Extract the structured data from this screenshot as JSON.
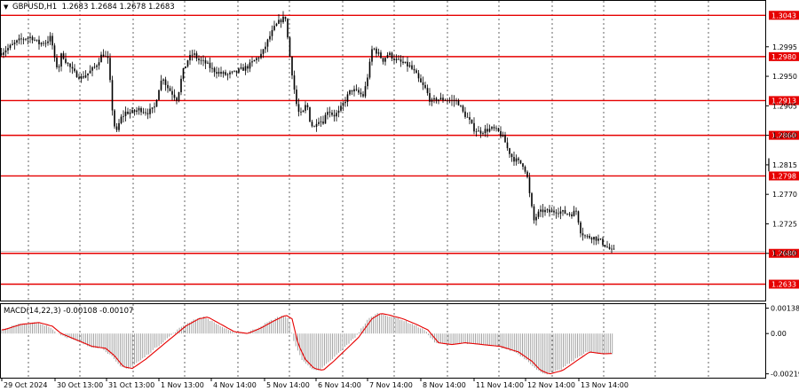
{
  "header": {
    "symbol_info": "GBPUSD,H1  1.2683 1.2684 1.2678 1.2683",
    "macd_info": "MACD(14,22,3) -0.00108 -0.00107"
  },
  "colors": {
    "background": "#ffffff",
    "candle": "#000000",
    "level_line": "#e60000",
    "signal_line": "#e60000",
    "histogram": "#9a9a9a",
    "grid": "#000000"
  },
  "chart_data": {
    "type": "candlestick",
    "symbol": "GBPUSD",
    "timeframe": "H1",
    "ohlc_current": {
      "open": 1.2683,
      "high": 1.2684,
      "low": 1.2678,
      "close": 1.2683
    },
    "ylim": [
      1.2608,
      1.3065
    ],
    "y_ticks": [
      1.2995,
      1.295,
      1.2905,
      1.286,
      1.2815,
      1.277,
      1.2725,
      1.268
    ],
    "x_labels": [
      "29 Oct 2024",
      "30 Oct 13:00",
      "31 Oct 13:00",
      "1 Nov 13:00",
      "4 Nov 14:00",
      "5 Nov 14:00",
      "6 Nov 14:00",
      "7 Nov 14:00",
      "8 Nov 14:00",
      "11 Nov 14:00",
      "12 Nov 14:00",
      "13 Nov 14:00"
    ],
    "levels": [
      1.3043,
      1.298,
      1.2913,
      1.286,
      1.2798,
      1.268,
      1.2633
    ],
    "current_price": 1.2683,
    "price_path": [
      [
        0,
        1.2985
      ],
      [
        6,
        1.299
      ],
      [
        12,
        1.2995
      ],
      [
        20,
        1.3003
      ],
      [
        28,
        1.3008
      ],
      [
        36,
        1.301
      ],
      [
        44,
        1.3
      ],
      [
        52,
        1.3002
      ],
      [
        58,
        1.301
      ],
      [
        62,
        1.2975
      ],
      [
        66,
        1.296
      ],
      [
        70,
        1.2985
      ],
      [
        76,
        1.297
      ],
      [
        84,
        1.2955
      ],
      [
        92,
        1.2948
      ],
      [
        100,
        1.2955
      ],
      [
        108,
        1.2965
      ],
      [
        116,
        1.2985
      ],
      [
        122,
        1.2975
      ],
      [
        126,
        1.292
      ],
      [
        128,
        1.288
      ],
      [
        132,
        1.2865
      ],
      [
        136,
        1.2885
      ],
      [
        142,
        1.2895
      ],
      [
        150,
        1.2895
      ],
      [
        158,
        1.29
      ],
      [
        166,
        1.2895
      ],
      [
        174,
        1.29
      ],
      [
        180,
        1.2935
      ],
      [
        184,
        1.295
      ],
      [
        188,
        1.2935
      ],
      [
        194,
        1.2925
      ],
      [
        200,
        1.2915
      ],
      [
        206,
        1.2955
      ],
      [
        212,
        1.2975
      ],
      [
        218,
        1.2985
      ],
      [
        224,
        1.2975
      ],
      [
        232,
        1.297
      ],
      [
        240,
        1.296
      ],
      [
        248,
        1.2955
      ],
      [
        256,
        1.2952
      ],
      [
        264,
        1.2955
      ],
      [
        272,
        1.296
      ],
      [
        280,
        1.2965
      ],
      [
        288,
        1.2975
      ],
      [
        296,
        1.2985
      ],
      [
        304,
        1.301
      ],
      [
        310,
        1.3025
      ],
      [
        316,
        1.3035
      ],
      [
        322,
        1.304
      ],
      [
        326,
        1.299
      ],
      [
        330,
        1.295
      ],
      [
        334,
        1.291
      ],
      [
        338,
        1.289
      ],
      [
        342,
        1.2895
      ],
      [
        346,
        1.291
      ],
      [
        350,
        1.288
      ],
      [
        354,
        1.287
      ],
      [
        358,
        1.2885
      ],
      [
        364,
        1.288
      ],
      [
        370,
        1.29
      ],
      [
        376,
        1.289
      ],
      [
        382,
        1.2895
      ],
      [
        388,
        1.291
      ],
      [
        396,
        1.293
      ],
      [
        404,
        1.2925
      ],
      [
        410,
        1.292
      ],
      [
        416,
        1.296
      ],
      [
        420,
        1.2995
      ],
      [
        426,
        1.2985
      ],
      [
        432,
        1.2975
      ],
      [
        438,
        1.2985
      ],
      [
        446,
        1.2975
      ],
      [
        454,
        1.297
      ],
      [
        462,
        1.2965
      ],
      [
        468,
        1.2955
      ],
      [
        474,
        1.294
      ],
      [
        480,
        1.293
      ],
      [
        486,
        1.291
      ],
      [
        492,
        1.2915
      ],
      [
        500,
        1.2915
      ],
      [
        508,
        1.2913
      ],
      [
        516,
        1.2912
      ],
      [
        522,
        1.2895
      ],
      [
        528,
        1.2885
      ],
      [
        534,
        1.287
      ],
      [
        540,
        1.2865
      ],
      [
        548,
        1.2868
      ],
      [
        556,
        1.287
      ],
      [
        562,
        1.2865
      ],
      [
        568,
        1.2855
      ],
      [
        572,
        1.284
      ],
      [
        578,
        1.2825
      ],
      [
        584,
        1.282
      ],
      [
        590,
        1.2815
      ],
      [
        594,
        1.28
      ],
      [
        598,
        1.276
      ],
      [
        602,
        1.273
      ],
      [
        606,
        1.274
      ],
      [
        612,
        1.2745
      ],
      [
        620,
        1.2743
      ],
      [
        628,
        1.2745
      ],
      [
        636,
        1.2742
      ],
      [
        644,
        1.274
      ],
      [
        650,
        1.2745
      ],
      [
        654,
        1.2715
      ],
      [
        660,
        1.2705
      ],
      [
        668,
        1.2705
      ],
      [
        676,
        1.27
      ],
      [
        684,
        1.269
      ],
      [
        690,
        1.2683
      ]
    ]
  },
  "macd": {
    "ylim": [
      -0.0024,
      0.0016
    ],
    "y_ticks": [
      0.00138,
      0.0,
      -0.00219
    ],
    "y_tick_labels": [
      "0.00138",
      "0.00",
      "-0.00219"
    ],
    "hist_path": [
      [
        0,
        0.0002
      ],
      [
        20,
        0.0005
      ],
      [
        40,
        0.0006
      ],
      [
        55,
        0.0004
      ],
      [
        65,
        0.0
      ],
      [
        80,
        -0.0003
      ],
      [
        100,
        -0.0007
      ],
      [
        115,
        -0.0008
      ],
      [
        125,
        -0.0012
      ],
      [
        135,
        -0.0018
      ],
      [
        145,
        -0.0019
      ],
      [
        160,
        -0.0014
      ],
      [
        175,
        -0.0008
      ],
      [
        190,
        -0.0002
      ],
      [
        205,
        0.0004
      ],
      [
        220,
        0.0008
      ],
      [
        230,
        0.0009
      ],
      [
        245,
        0.0005
      ],
      [
        260,
        0.0001
      ],
      [
        275,
        0.0
      ],
      [
        290,
        0.0003
      ],
      [
        305,
        0.0007
      ],
      [
        318,
        0.001
      ],
      [
        325,
        0.0008
      ],
      [
        332,
        -0.0006
      ],
      [
        340,
        -0.0014
      ],
      [
        350,
        -0.0019
      ],
      [
        360,
        -0.002
      ],
      [
        372,
        -0.0015
      ],
      [
        385,
        -0.0009
      ],
      [
        400,
        -0.0002
      ],
      [
        415,
        0.0008
      ],
      [
        425,
        0.0011
      ],
      [
        435,
        0.001
      ],
      [
        450,
        0.0008
      ],
      [
        465,
        0.0005
      ],
      [
        478,
        0.0002
      ],
      [
        490,
        -0.0005
      ],
      [
        505,
        -0.0006
      ],
      [
        520,
        -0.0005
      ],
      [
        540,
        -0.0006
      ],
      [
        560,
        -0.0007
      ],
      [
        580,
        -0.001
      ],
      [
        595,
        -0.0015
      ],
      [
        605,
        -0.002
      ],
      [
        615,
        -0.0022
      ],
      [
        630,
        -0.002
      ],
      [
        645,
        -0.0015
      ],
      [
        660,
        -0.001
      ],
      [
        675,
        -0.0011
      ],
      [
        690,
        -0.00108
      ]
    ],
    "signal_value": -0.00107
  }
}
